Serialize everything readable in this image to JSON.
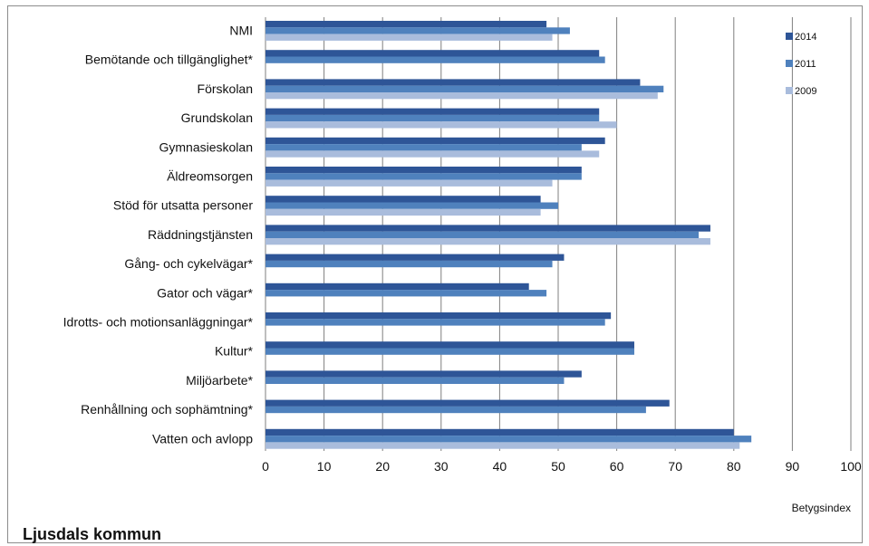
{
  "chart_data": {
    "type": "bar",
    "orientation": "horizontal",
    "categories": [
      "NMI",
      "Bemötande och tillgänglighet*",
      "Förskolan",
      "Grundskolan",
      "Gymnasieskolan",
      "Äldreomsorgen",
      "Stöd för utsatta personer",
      "Räddningstjänsten",
      "Gång- och cykelvägar*",
      "Gator och vägar*",
      "Idrotts- och motionsanläggningar*",
      "Kultur*",
      "Miljöarbete*",
      "Renhållning och sophämtning*",
      "Vatten och avlopp"
    ],
    "series": [
      {
        "name": "2014",
        "color": "#2e5597",
        "values": [
          48,
          57,
          64,
          57,
          58,
          54,
          47,
          76,
          51,
          45,
          59,
          63,
          54,
          69,
          80
        ]
      },
      {
        "name": "2011",
        "color": "#4f81bd",
        "values": [
          52,
          58,
          68,
          57,
          54,
          54,
          50,
          74,
          49,
          48,
          58,
          63,
          51,
          65,
          83
        ]
      },
      {
        "name": "2009",
        "color": "#a9bcdc",
        "values": [
          49,
          null,
          67,
          60,
          57,
          49,
          47,
          76,
          null,
          null,
          null,
          null,
          null,
          null,
          81
        ]
      }
    ],
    "xlim": [
      0,
      100
    ],
    "xticks": [
      "0",
      "10",
      "20",
      "30",
      "40",
      "50",
      "60",
      "70",
      "80",
      "90",
      "100"
    ],
    "xlabel": "Betygsindex",
    "grid": "vertical",
    "legend_position": "top-right"
  },
  "footer": {
    "title": "Ljusdals kommun"
  }
}
